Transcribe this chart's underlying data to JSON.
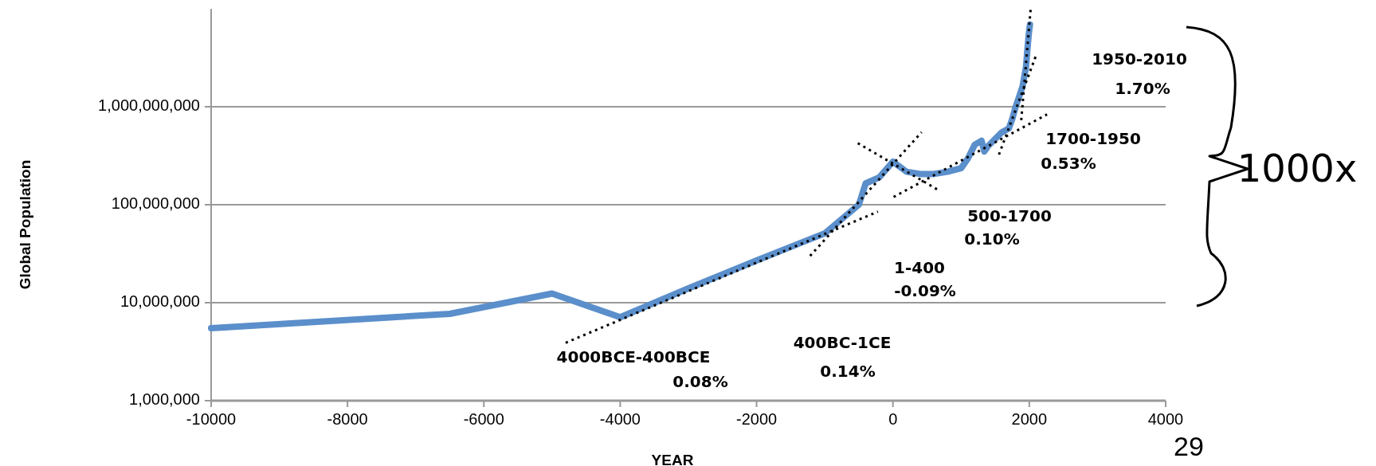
{
  "chart_data": {
    "type": "line",
    "xlabel": "YEAR",
    "ylabel": "Global Population",
    "log": "y",
    "xlim": [
      -10000,
      4000
    ],
    "xticks": [
      -10000,
      -8000,
      -6000,
      -4000,
      -2000,
      0,
      2000,
      4000
    ],
    "ylim": [
      1000000,
      10000000000
    ],
    "yticks": [
      {
        "value": 1000000,
        "label": "1,000,000"
      },
      {
        "value": 10000000,
        "label": "10,000,000"
      },
      {
        "value": 100000000,
        "label": "100,000,000"
      },
      {
        "value": 1000000000,
        "label": "1,000,000,000"
      }
    ],
    "grid": "y",
    "series": [
      {
        "color": "#5b8fcb",
        "line_style": "solid",
        "marker": "none",
        "x": [
          -10000,
          -6500,
          -5000,
          -4000,
          -3000,
          -2000,
          -1000,
          -500,
          -400,
          -200,
          1,
          200,
          400,
          600,
          800,
          1000,
          1100,
          1200,
          1300,
          1340,
          1400,
          1500,
          1600,
          1700,
          1750,
          1800,
          1850,
          1900,
          1950,
          1960,
          1970,
          1980,
          1990,
          2000,
          2010
        ],
        "values": [
          5500000,
          7700000,
          12400000,
          7100000,
          14000000,
          27000000,
          51000000,
          100000000,
          165000000,
          190000000,
          275000000,
          217000000,
          206000000,
          206000000,
          217000000,
          236000000,
          297000000,
          410000000,
          450000000,
          350000000,
          400000000,
          470000000,
          550000000,
          600000000,
          750000000,
          1000000000,
          1260000000,
          1600000000,
          2500000000,
          3000000000,
          3700000000,
          4400000000,
          5300000000,
          6100000000,
          6900000000
        ]
      },
      {
        "color": "#000000",
        "line_style": "dotted",
        "marker": "none",
        "x": [
          -4800,
          -220
        ],
        "values": [
          3900000,
          85000000
        ]
      },
      {
        "color": "#000000",
        "line_style": "dotted",
        "marker": "none",
        "x": [
          -1215,
          420
        ],
        "values": [
          30000000,
          550000000
        ]
      },
      {
        "color": "#000000",
        "line_style": "dotted",
        "marker": "none",
        "x": [
          -515,
          690
        ],
        "values": [
          425000000,
          138000000
        ]
      },
      {
        "color": "#000000",
        "line_style": "dotted",
        "marker": "none",
        "x": [
          10,
          2260
        ],
        "values": [
          120000000,
          835000000
        ]
      },
      {
        "color": "#000000",
        "line_style": "dotted",
        "marker": "none",
        "x": [
          1555,
          2110
        ],
        "values": [
          325000000,
          3500000000
        ]
      },
      {
        "color": "#000000",
        "line_style": "dotted",
        "marker": "none",
        "x": [
          1882,
          2020
        ],
        "values": [
          730000000,
          10000000000
        ]
      }
    ],
    "annotations": [
      "4000BCE-400BCE",
      "0.08%",
      "400BC-1CE",
      "0.14%",
      "1-400",
      "-0.09%",
      "500-1700",
      "0.10%",
      "1700-1950",
      "0.53%",
      "1950-2010",
      "1.70%",
      "1000x",
      "29"
    ]
  }
}
